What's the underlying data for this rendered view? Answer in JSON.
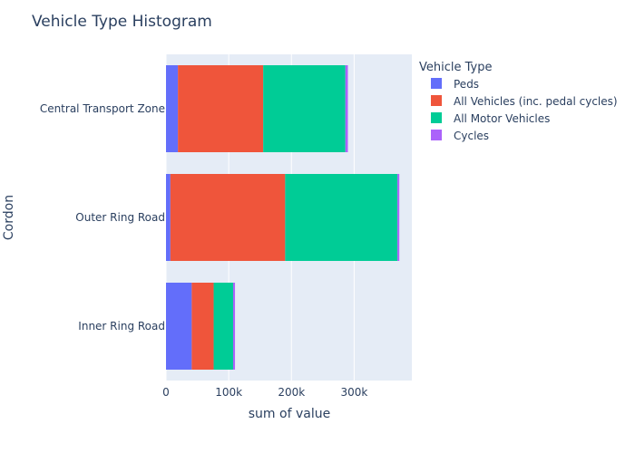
{
  "chart_data": {
    "type": "bar",
    "orientation": "horizontal",
    "barmode": "stack",
    "title": "Vehicle Type Histogram",
    "xlabel": "sum of value",
    "ylabel": "Cordon",
    "xlim": [
      0,
      392000
    ],
    "x_ticks": [
      {
        "value": 0,
        "label": "0"
      },
      {
        "value": 100000,
        "label": "100k"
      },
      {
        "value": 200000,
        "label": "200k"
      },
      {
        "value": 300000,
        "label": "300k"
      }
    ],
    "categories": [
      "Central Transport Zone",
      "Outer Ring Road",
      "Inner Ring Road"
    ],
    "legend": {
      "title": "Vehicle Type",
      "position": "top-right"
    },
    "grid": true,
    "background": "#e5ecf6",
    "series": [
      {
        "name": "Peds",
        "color": "#636efa",
        "values": [
          19000,
          7000,
          41000
        ]
      },
      {
        "name": "All Vehicles (inc. pedal cycles)",
        "color": "#ef553b",
        "values": [
          136000,
          183000,
          35000
        ]
      },
      {
        "name": "All Motor Vehicles",
        "color": "#00cc96",
        "values": [
          131000,
          179000,
          31000
        ]
      },
      {
        "name": "Cycles",
        "color": "#ab63fa",
        "values": [
          4000,
          3000,
          3000
        ]
      }
    ]
  }
}
